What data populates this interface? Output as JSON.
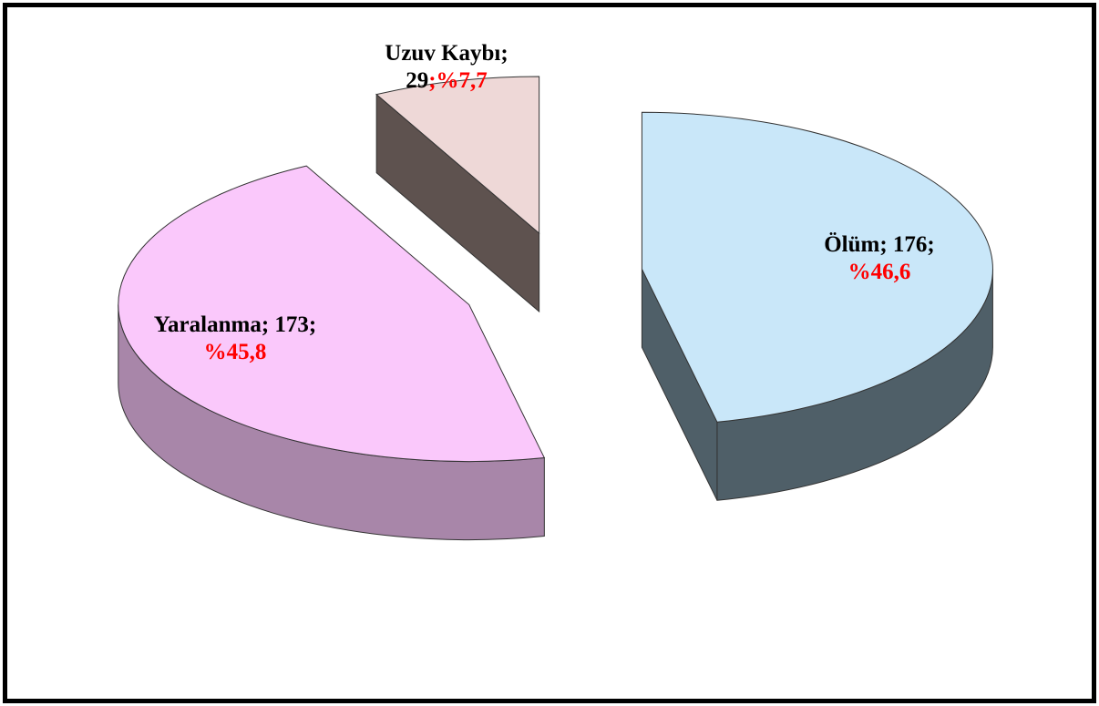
{
  "chart_data": {
    "type": "pie3d",
    "categories": [
      "Ölüm",
      "Yaralanma",
      "Uzuv Kaybı"
    ],
    "values": [
      176,
      173,
      29
    ],
    "value_labels": [
      "Ölüm; 176;",
      "Yaralanma;  173;",
      "Uzuv Kaybı;\n29"
    ],
    "percents": [
      46.6,
      45.8,
      7.7
    ],
    "percent_labels": [
      "%46,6",
      "%45,8",
      ";%7,7"
    ],
    "colors": [
      "#c9e7f9",
      "#fac8fb",
      "#eed8d7"
    ],
    "side_colors": [
      "#4f5f68",
      "#a886a9",
      "#5e524f"
    ],
    "exploded": true
  }
}
